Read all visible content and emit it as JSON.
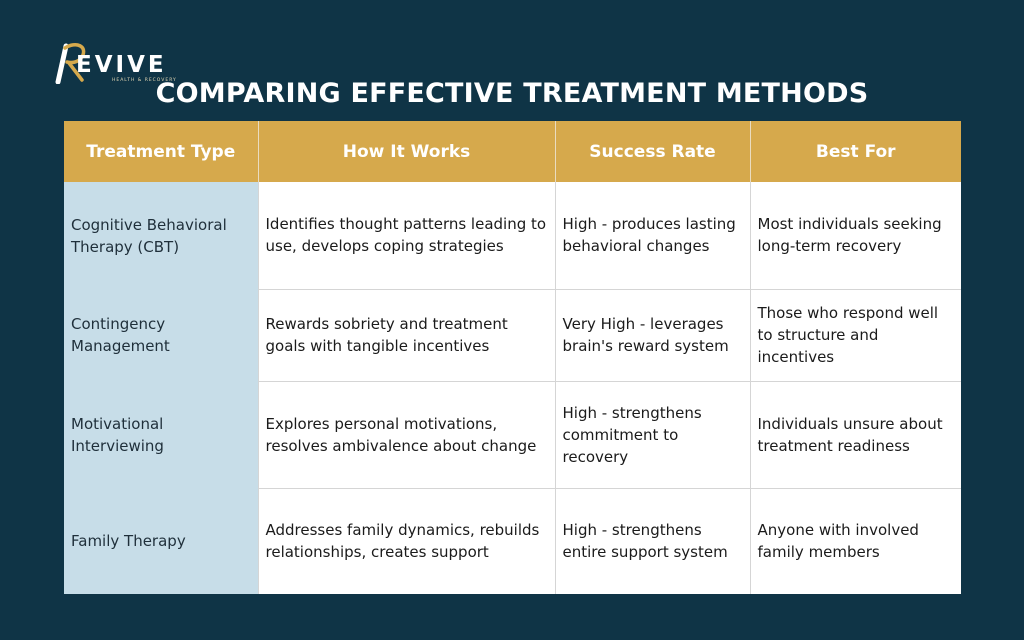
{
  "brand": {
    "name": "EVIVE",
    "tagline": "HEALTH & RECOVERY",
    "accent_color": "#d6a94c",
    "background_color": "#0f3446"
  },
  "title": "COMPARING EFFECTIVE TREATMENT METHODS",
  "table": {
    "headers": [
      "Treatment Type",
      "How It Works",
      "Success Rate",
      "Best For"
    ],
    "rows": [
      {
        "type": "Cognitive Behavioral Therapy (CBT)",
        "how": "Identifies thought patterns leading to use, develops coping strategies",
        "rate": "High - produces lasting behavioral changes",
        "best": "Most individuals seeking long-term recovery"
      },
      {
        "type": "Contingency Management",
        "how": "Rewards sobriety and treatment goals with tangible incentives",
        "rate": "Very High - leverages brain's reward system",
        "best": "Those who respond well to structure and incentives"
      },
      {
        "type": "Motivational Interviewing",
        "how": "Explores personal motivations, resolves ambivalence about change",
        "rate": "High - strengthens commitment to recovery",
        "best": "Individuals unsure about treatment readiness"
      },
      {
        "type": "Family Therapy",
        "how": "Addresses family dynamics, rebuilds relationships, creates support",
        "rate": "High - strengthens entire support system",
        "best": "Anyone with involved family members"
      }
    ]
  }
}
